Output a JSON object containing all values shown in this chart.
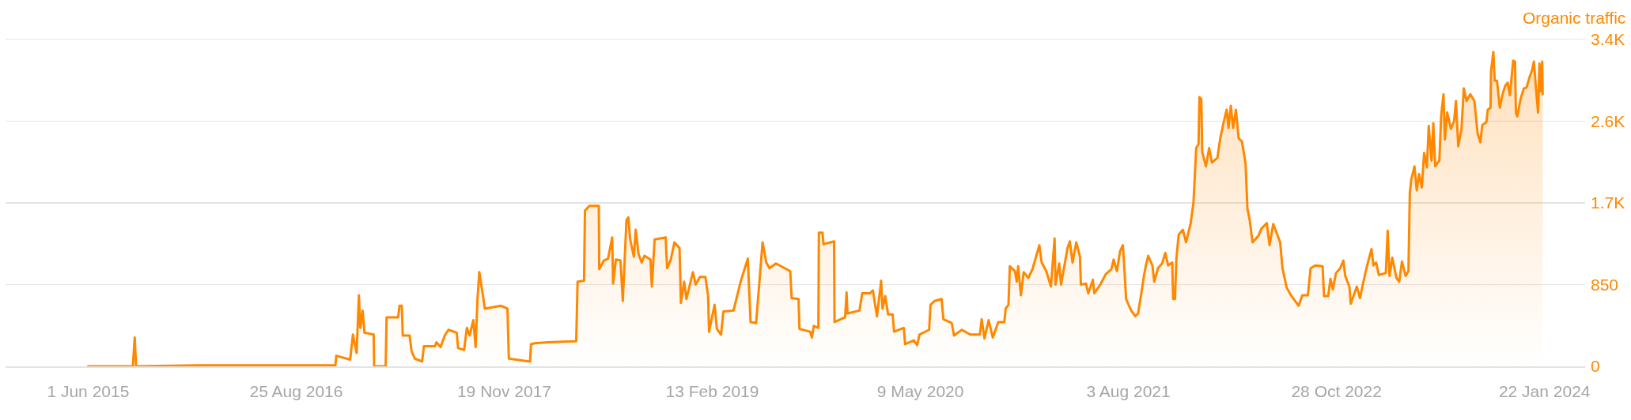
{
  "chart_data": {
    "type": "area",
    "ylabel": "Organic traffic",
    "x": [
      "2015-06-01",
      "2015-09-06",
      "2015-09-10",
      "2015-09-13",
      "2016-01-25",
      "2016-09-01",
      "2016-11-18",
      "2016-11-20",
      "2016-12-20",
      "2016-12-26",
      "2017-01-03",
      "2017-01-08",
      "2017-01-11",
      "2017-01-16",
      "2017-01-20",
      "2017-02-09",
      "2017-02-10",
      "2017-03-07",
      "2017-03-09",
      "2017-04-03",
      "2017-04-06",
      "2017-04-11",
      "2017-04-13",
      "2017-04-28",
      "2017-05-02",
      "2017-05-09",
      "2017-05-25",
      "2017-05-29",
      "2017-06-22",
      "2017-06-25",
      "2017-07-04",
      "2017-07-13",
      "2017-07-21",
      "2017-08-08",
      "2017-08-11",
      "2017-08-24",
      "2017-08-30",
      "2017-09-05",
      "2017-09-13",
      "2017-09-18",
      "2017-09-22",
      "2017-09-26",
      "2017-10-01",
      "2017-10-08",
      "2017-11-12",
      "2017-11-26",
      "2017-11-29",
      "2018-01-14",
      "2018-01-16",
      "2018-01-24",
      "2018-02-23",
      "2018-04-24",
      "2018-04-27",
      "2018-05-11",
      "2018-05-13",
      "2018-05-23",
      "2018-06-12",
      "2018-06-13",
      "2018-06-23",
      "2018-07-02",
      "2018-07-11",
      "2018-07-13",
      "2018-07-19",
      "2018-07-29",
      "2018-08-03",
      "2018-08-11",
      "2018-08-15",
      "2018-08-19",
      "2018-08-27",
      "2018-08-31",
      "2018-09-06",
      "2018-09-13",
      "2018-09-19",
      "2018-10-02",
      "2018-10-05",
      "2018-10-11",
      "2018-11-04",
      "2018-11-07",
      "2018-11-15",
      "2018-11-23",
      "2018-12-04",
      "2018-12-07",
      "2018-12-14",
      "2018-12-19",
      "2019-01-02",
      "2019-01-08",
      "2019-01-17",
      "2019-01-29",
      "2019-02-04",
      "2019-02-06",
      "2019-02-18",
      "2019-02-23",
      "2019-03-04",
      "2019-03-09",
      "2019-03-31",
      "2019-04-16",
      "2019-05-01",
      "2019-05-07",
      "2019-05-19",
      "2019-06-02",
      "2019-06-10",
      "2019-06-17",
      "2019-07-01",
      "2019-08-01",
      "2019-08-04",
      "2019-08-19",
      "2019-08-21",
      "2019-09-13",
      "2019-09-17",
      "2019-09-21",
      "2019-10-01",
      "2019-10-02",
      "2019-10-10",
      "2019-10-12",
      "2019-11-04",
      "2019-11-05",
      "2019-11-28",
      "2019-12-01",
      "2019-12-03",
      "2019-12-29",
      "2020-01-04",
      "2020-01-21",
      "2020-01-27",
      "2020-02-05",
      "2020-02-14",
      "2020-02-17",
      "2020-02-23",
      "2020-02-29",
      "2020-03-10",
      "2020-03-13",
      "2020-04-03",
      "2020-04-06",
      "2020-04-25",
      "2020-05-02",
      "2020-05-07",
      "2020-05-28",
      "2020-05-31",
      "2020-06-09",
      "2020-06-24",
      "2020-06-28",
      "2020-07-16",
      "2020-07-21",
      "2020-08-07",
      "2020-08-25",
      "2020-09-15",
      "2020-09-19",
      "2020-09-25",
      "2020-10-04",
      "2020-10-13",
      "2020-10-25",
      "2020-11-07",
      "2020-11-10",
      "2020-11-16",
      "2020-11-19",
      "2020-11-30",
      "2020-12-04",
      "2020-12-07",
      "2020-12-13",
      "2020-12-19",
      "2020-12-29",
      "2021-01-07",
      "2021-01-22",
      "2021-01-27",
      "2021-02-06",
      "2021-02-16",
      "2021-02-24",
      "2021-02-26",
      "2021-03-06",
      "2021-03-10",
      "2021-03-24",
      "2021-03-29",
      "2021-04-04",
      "2021-04-12",
      "2021-04-20",
      "2021-04-22",
      "2021-05-03",
      "2021-05-08",
      "2021-05-18",
      "2021-05-21",
      "2021-06-03",
      "2021-06-15",
      "2021-06-27",
      "2021-07-02",
      "2021-07-09",
      "2021-07-16",
      "2021-07-22",
      "2021-07-25",
      "2021-07-29",
      "2021-08-09",
      "2021-08-18",
      "2021-08-24",
      "2021-08-31",
      "2021-09-06",
      "2021-09-10",
      "2021-09-15",
      "2021-09-24",
      "2021-09-28",
      "2021-10-06",
      "2021-10-15",
      "2021-10-22",
      "2021-10-28",
      "2021-11-06",
      "2021-11-08",
      "2021-11-12",
      "2021-11-15",
      "2021-11-20",
      "2021-11-29",
      "2021-12-06",
      "2021-12-16",
      "2021-12-22",
      "2021-12-28",
      "2022-01-02",
      "2022-01-04",
      "2022-01-08",
      "2022-01-10",
      "2022-01-18",
      "2022-01-25",
      "2022-01-31",
      "2022-02-12",
      "2022-02-18",
      "2022-02-26",
      "2022-03-04",
      "2022-03-08",
      "2022-03-13",
      "2022-03-18",
      "2022-03-24",
      "2022-03-30",
      "2022-04-06",
      "2022-04-14",
      "2022-04-18",
      "2022-04-23",
      "2022-04-29",
      "2022-05-12",
      "2022-05-18",
      "2022-05-30",
      "2022-06-05",
      "2022-06-13",
      "2022-06-28",
      "2022-07-03",
      "2022-07-12",
      "2022-07-21",
      "2022-08-04",
      "2022-08-07",
      "2022-08-15",
      "2022-08-27",
      "2022-09-02",
      "2022-09-13",
      "2022-09-28",
      "2022-10-01",
      "2022-10-10",
      "2022-10-15",
      "2022-10-20",
      "2022-10-27",
      "2022-11-05",
      "2022-11-12",
      "2022-11-16",
      "2022-11-25",
      "2022-11-28",
      "2022-12-11",
      "2022-12-18",
      "2022-12-24",
      "2023-01-02",
      "2023-01-12",
      "2023-01-16",
      "2023-01-22",
      "2023-01-28",
      "2023-02-12",
      "2023-02-16",
      "2023-02-20",
      "2023-02-26",
      "2023-03-07",
      "2023-03-13",
      "2023-03-19",
      "2023-03-27",
      "2023-04-02",
      "2023-04-05",
      "2023-04-08",
      "2023-04-15",
      "2023-04-20",
      "2023-04-25",
      "2023-05-01",
      "2023-05-06",
      "2023-05-12",
      "2023-05-16",
      "2023-05-22",
      "2023-05-26",
      "2023-05-30",
      "2023-06-08",
      "2023-06-12",
      "2023-06-17",
      "2023-06-20",
      "2023-06-25",
      "2023-07-03",
      "2023-07-10",
      "2023-07-14",
      "2023-07-19",
      "2023-07-26",
      "2023-07-31",
      "2023-08-06",
      "2023-08-14",
      "2023-08-23",
      "2023-08-30",
      "2023-09-05",
      "2023-09-09",
      "2023-09-18",
      "2023-09-21",
      "2023-09-27",
      "2023-09-28",
      "2023-10-03",
      "2023-10-06",
      "2023-10-11",
      "2023-10-17",
      "2023-10-23",
      "2023-10-29",
      "2023-11-03",
      "2023-11-08",
      "2023-11-15",
      "2023-11-19",
      "2023-11-21",
      "2023-11-24",
      "2023-12-01",
      "2023-12-08",
      "2023-12-14",
      "2023-12-20",
      "2023-12-26",
      "2023-12-30",
      "2024-01-03",
      "2024-01-08",
      "2024-01-11",
      "2024-01-13",
      "2024-01-17",
      "2024-01-18"
    ],
    "series": [
      {
        "color": "#ff8800",
        "values": [
          0,
          0,
          300,
          0,
          10,
          10,
          10,
          110,
          70,
          330,
          140,
          740,
          400,
          580,
          350,
          330,
          0,
          0,
          510,
          510,
          630,
          630,
          320,
          320,
          160,
          80,
          50,
          210,
          210,
          250,
          200,
          320,
          380,
          350,
          190,
          170,
          400,
          320,
          480,
          200,
          700,
          980,
          830,
          600,
          630,
          600,
          80,
          50,
          230,
          240,
          250,
          260,
          880,
          890,
          1620,
          1670,
          1670,
          1010,
          1100,
          1120,
          1340,
          860,
          1110,
          1100,
          680,
          1520,
          1550,
          1320,
          1140,
          1420,
          1170,
          1080,
          1150,
          1110,
          830,
          1320,
          1340,
          1020,
          1110,
          1290,
          1230,
          660,
          880,
          700,
          980,
          850,
          930,
          930,
          730,
          360,
          640,
          390,
          330,
          570,
          580,
          890,
          1120,
          460,
          450,
          1290,
          1080,
          1020,
          1070,
          990,
          710,
          700,
          390,
          360,
          300,
          420,
          400,
          1390,
          1390,
          1270,
          1300,
          460,
          510,
          770,
          550,
          580,
          760,
          760,
          790,
          520,
          890,
          600,
          730,
          540,
          540,
          360,
          400,
          230,
          270,
          220,
          330,
          380,
          640,
          680,
          700,
          490,
          450,
          320,
          380,
          330,
          330,
          490,
          290,
          480,
          300,
          460,
          460,
          600,
          640,
          1040,
          990,
          880,
          1040,
          740,
          980,
          920,
          1010,
          1260,
          1080,
          990,
          830,
          1330,
          850,
          1070,
          850,
          1230,
          1300,
          1080,
          1290,
          1140,
          850,
          860,
          760,
          900,
          760,
          850,
          960,
          1010,
          1110,
          990,
          1200,
          1260,
          1040,
          700,
          580,
          520,
          550,
          760,
          950,
          1050,
          1150,
          1050,
          880,
          1020,
          1070,
          1180,
          1050,
          1080,
          700,
          700,
          1120,
          1370,
          1420,
          1290,
          1490,
          1700,
          2270,
          2310,
          2800,
          2780,
          2230,
          2080,
          2270,
          2120,
          2170,
          2370,
          2550,
          2670,
          2480,
          2710,
          2480,
          2670,
          2370,
          2340,
          2110,
          1640,
          1520,
          1290,
          1360,
          1430,
          1490,
          1260,
          1480,
          1290,
          1020,
          820,
          740,
          650,
          630,
          740,
          740,
          1020,
          1050,
          1040,
          730,
          730,
          910,
          800,
          970,
          1020,
          1100,
          940,
          830,
          650,
          830,
          710,
          850,
          1040,
          1220,
          1050,
          1080,
          950,
          970,
          1410,
          940,
          1130,
          920,
          880,
          1090,
          940,
          990,
          1800,
          1940,
          2080,
          1830,
          2000,
          1860,
          2220,
          2070,
          2500,
          2140,
          2530,
          2080,
          2140,
          2610,
          2830,
          2360,
          2640,
          2470,
          2550,
          2760,
          2290,
          2470,
          2890,
          2760,
          2830,
          2760,
          2420,
          2330,
          2510,
          2540,
          2670,
          2690,
          3070,
          3270,
          2970,
          2970,
          2690,
          2830,
          2920,
          2950,
          2820,
          3180,
          3170,
          2640,
          2600,
          2780,
          2890,
          2900,
          3000,
          3080,
          3170,
          2920,
          2640,
          3150,
          2860,
          3170,
          2830
        ]
      }
    ],
    "xlim": [
      "2014-12-04",
      "2024-04-19"
    ],
    "xticks": [
      {
        "value": "2015-06-01",
        "label": "1 Jun 2015"
      },
      {
        "value": "2016-08-25",
        "label": "25 Aug 2016"
      },
      {
        "value": "2017-11-19",
        "label": "19 Nov 2017"
      },
      {
        "value": "2019-02-13",
        "label": "13 Feb 2019"
      },
      {
        "value": "2020-05-09",
        "label": "9 May 2020"
      },
      {
        "value": "2021-08-03",
        "label": "3 Aug 2021"
      },
      {
        "value": "2022-10-28",
        "label": "28 Oct 2022"
      },
      {
        "value": "2024-01-22",
        "label": "22 Jan 2024"
      }
    ],
    "ylim": [
      0,
      3400
    ],
    "yticks": [
      0,
      850,
      {
        "value": 1700,
        "label": "1.7K"
      },
      {
        "value": 2550,
        "label": "2.6K"
      },
      {
        "value": 3400,
        "label": "3.4K"
      }
    ],
    "grid": "y"
  }
}
